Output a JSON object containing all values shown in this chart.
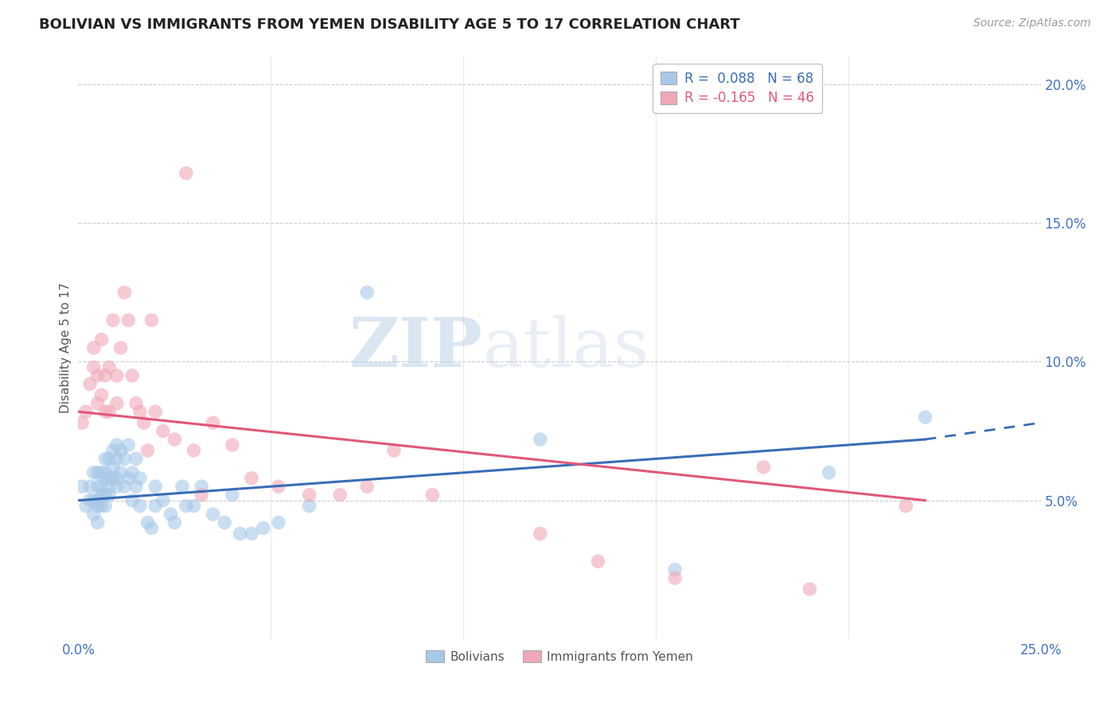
{
  "title": "BOLIVIAN VS IMMIGRANTS FROM YEMEN DISABILITY AGE 5 TO 17 CORRELATION CHART",
  "source": "Source: ZipAtlas.com",
  "ylabel": "Disability Age 5 to 17",
  "xlim": [
    0.0,
    0.25
  ],
  "ylim": [
    0.0,
    0.21
  ],
  "xticks": [
    0.0,
    0.05,
    0.1,
    0.15,
    0.2,
    0.25
  ],
  "yticks": [
    0.05,
    0.1,
    0.15,
    0.2
  ],
  "xtick_labels": [
    "0.0%",
    "",
    "",
    "",
    "",
    "25.0%"
  ],
  "ytick_labels_right": [
    "5.0%",
    "10.0%",
    "15.0%",
    "20.0%"
  ],
  "legend_labels": [
    "Bolivians",
    "Immigrants from Yemen"
  ],
  "r_bolivian": 0.088,
  "n_bolivian": 68,
  "r_yemen": -0.165,
  "n_yemen": 46,
  "blue_color": "#a8c8e8",
  "pink_color": "#f0a8b8",
  "blue_line_color": "#3a6db5",
  "pink_line_color": "#e05878",
  "watermark": "ZIPatlas",
  "blue_scatter_x": [
    0.001,
    0.002,
    0.003,
    0.003,
    0.004,
    0.004,
    0.004,
    0.005,
    0.005,
    0.005,
    0.005,
    0.005,
    0.006,
    0.006,
    0.006,
    0.006,
    0.007,
    0.007,
    0.007,
    0.007,
    0.007,
    0.008,
    0.008,
    0.008,
    0.008,
    0.009,
    0.009,
    0.009,
    0.01,
    0.01,
    0.01,
    0.01,
    0.011,
    0.011,
    0.012,
    0.012,
    0.013,
    0.013,
    0.014,
    0.014,
    0.015,
    0.015,
    0.016,
    0.016,
    0.018,
    0.019,
    0.02,
    0.02,
    0.022,
    0.024,
    0.025,
    0.027,
    0.028,
    0.03,
    0.032,
    0.035,
    0.038,
    0.04,
    0.042,
    0.045,
    0.048,
    0.052,
    0.06,
    0.075,
    0.12,
    0.155,
    0.195,
    0.22
  ],
  "blue_scatter_y": [
    0.055,
    0.048,
    0.055,
    0.05,
    0.06,
    0.05,
    0.045,
    0.06,
    0.055,
    0.05,
    0.048,
    0.042,
    0.06,
    0.055,
    0.052,
    0.048,
    0.065,
    0.06,
    0.058,
    0.052,
    0.048,
    0.065,
    0.058,
    0.055,
    0.052,
    0.068,
    0.062,
    0.058,
    0.07,
    0.065,
    0.058,
    0.055,
    0.068,
    0.06,
    0.065,
    0.055,
    0.07,
    0.058,
    0.06,
    0.05,
    0.065,
    0.055,
    0.058,
    0.048,
    0.042,
    0.04,
    0.055,
    0.048,
    0.05,
    0.045,
    0.042,
    0.055,
    0.048,
    0.048,
    0.055,
    0.045,
    0.042,
    0.052,
    0.038,
    0.038,
    0.04,
    0.042,
    0.048,
    0.125,
    0.072,
    0.025,
    0.06,
    0.08
  ],
  "pink_scatter_x": [
    0.001,
    0.002,
    0.003,
    0.004,
    0.004,
    0.005,
    0.005,
    0.006,
    0.006,
    0.007,
    0.007,
    0.008,
    0.008,
    0.009,
    0.01,
    0.01,
    0.011,
    0.012,
    0.013,
    0.014,
    0.015,
    0.016,
    0.017,
    0.018,
    0.019,
    0.02,
    0.022,
    0.025,
    0.028,
    0.03,
    0.032,
    0.035,
    0.04,
    0.045,
    0.052,
    0.06,
    0.068,
    0.075,
    0.082,
    0.092,
    0.12,
    0.135,
    0.155,
    0.178,
    0.19,
    0.215
  ],
  "pink_scatter_y": [
    0.078,
    0.082,
    0.092,
    0.098,
    0.105,
    0.085,
    0.095,
    0.088,
    0.108,
    0.082,
    0.095,
    0.098,
    0.082,
    0.115,
    0.095,
    0.085,
    0.105,
    0.125,
    0.115,
    0.095,
    0.085,
    0.082,
    0.078,
    0.068,
    0.115,
    0.082,
    0.075,
    0.072,
    0.168,
    0.068,
    0.052,
    0.078,
    0.07,
    0.058,
    0.055,
    0.052,
    0.052,
    0.055,
    0.068,
    0.052,
    0.038,
    0.028,
    0.022,
    0.062,
    0.018,
    0.048
  ],
  "blue_line_x_start": 0.0,
  "blue_line_y_start": 0.05,
  "blue_line_x_solid_end": 0.22,
  "blue_line_y_solid_end": 0.072,
  "blue_line_x_dash_end": 0.25,
  "blue_line_y_dash_end": 0.078,
  "pink_line_x_start": 0.0,
  "pink_line_y_start": 0.082,
  "pink_line_x_end": 0.22,
  "pink_line_y_end": 0.05
}
